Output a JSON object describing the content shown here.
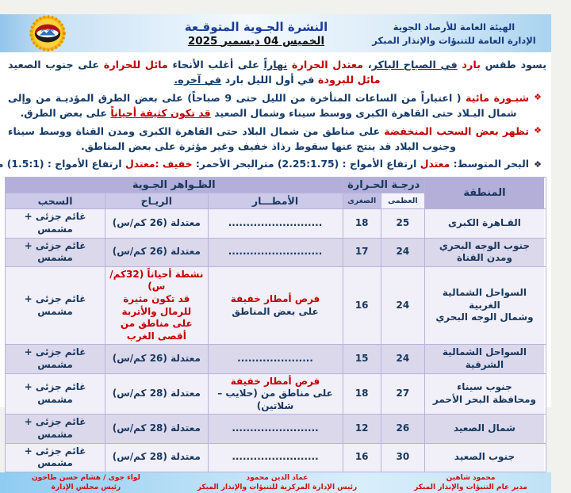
{
  "colors": {
    "accent_red": "#c00000",
    "navy_text": "#17375d",
    "header_lavender": "#b3afd9",
    "row_shade": "#dbd8ec",
    "band_blue": "#a9d3ef"
  },
  "header": {
    "authority_line1": "الهيئة العامة للأرصاد الجوية",
    "authority_line2": "الإدارة العامة للتنبؤات والإنذار المبكر",
    "title": "النشرة الجـوية المتوقـعة",
    "date": "الخميس 04 ديسمبر 2025",
    "logo_icon": "egypt-meteorological-authority-emblem"
  },
  "forecast": {
    "p1": [
      {
        "t": "يسود طقس "
      },
      {
        "t": "بارد ",
        "c": "red"
      },
      {
        "t": "في الصباح الباكر",
        "u": true
      },
      {
        "t": "، "
      },
      {
        "t": "معتدل الحرارة ",
        "c": "red"
      },
      {
        "t": "نهاراً",
        "u": true
      },
      {
        "t": " على أغلب الأنحاء "
      },
      {
        "t": "مائل للحرارة ",
        "c": "red"
      },
      {
        "t": "على جنوب الصعيد "
      },
      {
        "t": "مائل للبرودة ",
        "c": "red"
      },
      {
        "t": "في أول الليل بارد "
      },
      {
        "t": "في آخره.",
        "u": true
      }
    ],
    "p2": {
      "bullet": "❖",
      "segments": [
        {
          "t": "شبـورة مائية ",
          "c": "red"
        },
        {
          "t": "( اعتباراً من الساعات المتأخرة من الليل حتى 9 صباحاً) على بعض الطرق المؤديـة من وإلى شمال البـلاد حتى القاهرة الكبرى ووسط سيناء وشمال الصعيد "
        },
        {
          "t": "قد تكون كثيفة أحياناً",
          "c": "red",
          "u": true
        },
        {
          "t": " على بعض الطرق."
        }
      ]
    },
    "p3": {
      "bullet": "❖",
      "segments": [
        {
          "t": "تظهر بعض السحب المنخفضة ",
          "c": "red"
        },
        {
          "t": "على مناطق من شمال البلاد حتى القاهرة الكبرى ومدن القناة ووسط سيناء وجنوب البلاد قد ينتج عنها سقوط رذاذ خفيف وغير مؤثرة على بعض المناطق."
        }
      ]
    },
    "seas": {
      "bullet": "❖",
      "mediterranean": [
        {
          "t": "البحر المتوسط: "
        },
        {
          "t": "معتدل",
          "c": "red"
        },
        {
          "t": "    ارتفاع الأمواج : (2.25:1.75) متر"
        }
      ],
      "red_sea": [
        {
          "t": "البحر الأحمر: "
        },
        {
          "t": "خفيف :معتدل",
          "c": "red"
        },
        {
          "t": "   ارتفاع الأمواج : (1.5:1) متر"
        }
      ]
    }
  },
  "table": {
    "headers": {
      "region": "المنطقة",
      "temp_group": "درجـة الحـرارة",
      "phenomena_group": "الظـواهر الجـوية",
      "max": "العظمى",
      "min": "الصغرى",
      "rain": "الأمطـــار",
      "wind": "الريـاح",
      "clouds": "السحب"
    },
    "rows": [
      {
        "region": [
          "القـاهرة الكبرى"
        ],
        "max": "25",
        "min": "18",
        "rain": [
          [
            {
              "t": ".........................."
            }
          ]
        ],
        "wind": [
          [
            {
              "t": "معتدلة (26 كم/س)"
            }
          ]
        ],
        "clouds": "غائم جزئى + مشمس"
      },
      {
        "region": [
          "جنوب الوجه البحري",
          "ومدن القناة"
        ],
        "max": "24",
        "min": "17",
        "rain": [
          [
            {
              "t": ".........................."
            }
          ]
        ],
        "wind": [
          [
            {
              "t": "معتدلة (26 كم/س)"
            }
          ]
        ],
        "clouds": "غائم جزئى + مشمس"
      },
      {
        "region": [
          "السواحل الشمالية الغربية",
          "وشمال الوجه البحري"
        ],
        "max": "24",
        "min": "16",
        "rain": [
          [
            {
              "t": "فرص أمطار خفيفة",
              "c": "red"
            }
          ],
          [
            {
              "t": "على بعض المناطق"
            }
          ]
        ],
        "wind": [
          [
            {
              "t": "نشطة أحياناً (32كم/س)",
              "c": "red"
            }
          ],
          [
            {
              "t": "قد تكون مثيرة للرمال والأتربة",
              "c": "red"
            }
          ],
          [
            {
              "t": "على مناطق من أقصى الغرب",
              "c": "red"
            }
          ]
        ],
        "clouds": "غائم جزئى + مشمس"
      },
      {
        "region": [
          "السواحل الشمالية الشرقية"
        ],
        "max": "24",
        "min": "15",
        "rain": [
          [
            {
              "t": "....................."
            }
          ]
        ],
        "wind": [
          [
            {
              "t": "معتدلة (26 كم/س)"
            }
          ]
        ],
        "clouds": "غائم جزئى + مشمس"
      },
      {
        "region": [
          "جنوب سيناء",
          "ومحافظة البحر الأحمر"
        ],
        "max": "27",
        "min": "18",
        "rain": [
          [
            {
              "t": "فرص أمطار خفيفة",
              "c": "red"
            }
          ],
          [
            {
              "t": "على مناطق من (حلايب – شلاتين)"
            }
          ]
        ],
        "wind": [
          [
            {
              "t": "معتدلة (28 كم/س)"
            }
          ]
        ],
        "clouds": "غائم جزئى + مشمس"
      },
      {
        "region": [
          "شمال الصعيد"
        ],
        "max": "26",
        "min": "12",
        "rain": [
          [
            {
              "t": "........................"
            }
          ]
        ],
        "wind": [
          [
            {
              "t": "معتدلة (28 كم/س)"
            }
          ]
        ],
        "clouds": "غائم جزئى + مشمس"
      },
      {
        "region": [
          "جنوب الصعيد"
        ],
        "max": "30",
        "min": "16",
        "rain": [
          [
            {
              "t": "........................"
            }
          ]
        ],
        "wind": [
          [
            {
              "t": "معتدلة (28 كم/س)"
            }
          ]
        ],
        "clouds": "غائم جزئى + مشمس"
      }
    ]
  },
  "signatures": [
    {
      "name": "محمود شاهين",
      "title": "مدير عام التنبؤات والإنذار المبكر"
    },
    {
      "name": "عماد الدين محمود",
      "title": "رئيس الإدارة المركزية للتنبؤات والإنذار المبكر"
    },
    {
      "name": "لواء جوى / هشام حسن طاحون",
      "title": "رئيس مجلس الإدارة"
    }
  ]
}
